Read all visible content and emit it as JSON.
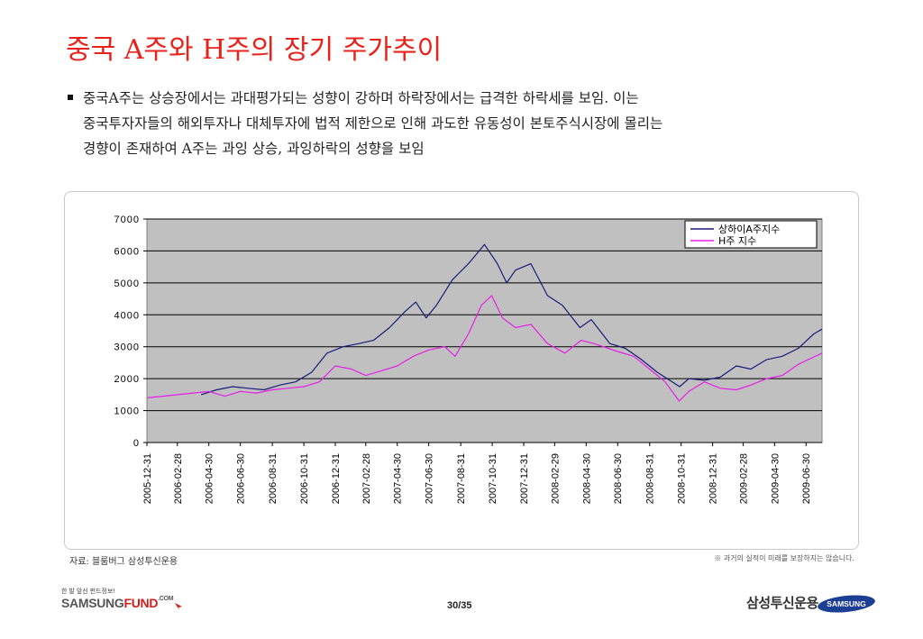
{
  "page": {
    "title": "중국 A주와 H주의 장기 주가추이",
    "bullet_lines": [
      "중국A주는 상승장에서는 과대평가되는 성향이 강하며 하락장에서는 급격한 하락세를 보임. 이는",
      "중국투자자들의 해외투자나 대체투자에 법적 제한으로 인해 과도한 유동성이 본토주식시장에 몰리는",
      "경향이 존재하여 A주는 과잉 상승, 과잉하락의 성향을 보임"
    ],
    "source": "자료: 블룸버그 삼성투신운용",
    "disclaimer": "※ 과거의 실적이 미래를 보장하지는 않습니다.",
    "footer": {
      "slogan": "한 발 앞선 펀드정보!",
      "brand_main": "SAMSUNG",
      "brand_fund": "FUND",
      "brand_com": ".COM",
      "page_number": "30/35",
      "company_name": "삼성투신운용",
      "logo_text": "SAMSUNG"
    }
  },
  "colors": {
    "title": "#e8221b",
    "plot_bg": "#c0c0c0",
    "series_a": "#1a1a7a",
    "series_h": "#e61ee6",
    "gridline": "#000000"
  },
  "chart_data": {
    "type": "line",
    "ylim": [
      0,
      7000
    ],
    "yticks": [
      "0",
      "1000",
      "2000",
      "3000",
      "4000",
      "5000",
      "6000",
      "7000"
    ],
    "x_tick_labels": [
      "2005-12-31",
      "2006-02-28",
      "2006-04-30",
      "2006-06-30",
      "2006-08-31",
      "2006-10-31",
      "2006-12-31",
      "2007-02-28",
      "2007-04-30",
      "2007-06-30",
      "2007-08-31",
      "2007-10-31",
      "2007-12-31",
      "2008-02-29",
      "2008-04-30",
      "2008-06-30",
      "2008-08-31",
      "2008-10-31",
      "2008-12-31",
      "2009-02-28",
      "2009-04-30",
      "2009-06-30"
    ],
    "grid": true,
    "legend_position": "top-right",
    "series": [
      {
        "name": "상하이A주지수",
        "x": [
          "2006-04-15",
          "2006-05-15",
          "2006-06-15",
          "2006-07-15",
          "2006-08-15",
          "2006-09-15",
          "2006-10-15",
          "2006-11-15",
          "2006-12-15",
          "2007-01-15",
          "2007-02-15",
          "2007-03-15",
          "2007-04-15",
          "2007-05-15",
          "2007-06-05",
          "2007-06-25",
          "2007-07-15",
          "2007-08-15",
          "2007-09-15",
          "2007-10-16",
          "2007-11-10",
          "2007-11-28",
          "2007-12-15",
          "2008-01-14",
          "2008-02-15",
          "2008-03-15",
          "2008-04-18",
          "2008-05-10",
          "2008-06-15",
          "2008-07-15",
          "2008-08-15",
          "2008-09-15",
          "2008-10-28",
          "2008-11-15",
          "2008-12-15",
          "2009-01-15",
          "2009-02-15",
          "2009-03-15",
          "2009-04-15",
          "2009-05-15",
          "2009-06-15",
          "2009-07-15",
          "2009-07-31"
        ],
        "values": [
          1500,
          1650,
          1750,
          1700,
          1650,
          1800,
          1900,
          2200,
          2800,
          3000,
          3100,
          3200,
          3600,
          4100,
          4400,
          3900,
          4300,
          5100,
          5600,
          6200,
          5600,
          5000,
          5400,
          5600,
          4600,
          4300,
          3600,
          3850,
          3100,
          2950,
          2600,
          2200,
          1750,
          2000,
          1950,
          2050,
          2400,
          2300,
          2600,
          2700,
          2950,
          3400,
          3550
        ]
      },
      {
        "name": "H주 지수",
        "x": [
          "2006-01-01",
          "2006-01-31",
          "2006-02-28",
          "2006-03-31",
          "2006-04-30",
          "2006-05-31",
          "2006-06-30",
          "2006-07-31",
          "2006-08-31",
          "2006-09-30",
          "2006-10-31",
          "2006-11-30",
          "2006-12-31",
          "2007-01-31",
          "2007-02-28",
          "2007-03-31",
          "2007-04-30",
          "2007-05-31",
          "2007-06-30",
          "2007-07-31",
          "2007-08-20",
          "2007-09-15",
          "2007-10-10",
          "2007-10-30",
          "2007-11-20",
          "2007-12-15",
          "2008-01-14",
          "2008-02-15",
          "2008-03-20",
          "2008-04-20",
          "2008-05-15",
          "2008-06-30",
          "2008-07-31",
          "2008-08-31",
          "2008-09-30",
          "2008-10-27",
          "2008-11-15",
          "2008-12-15",
          "2009-01-15",
          "2009-02-15",
          "2009-03-15",
          "2009-04-15",
          "2009-05-15",
          "2009-06-15",
          "2009-07-31"
        ],
        "values": [
          1400,
          1450,
          1500,
          1550,
          1600,
          1450,
          1600,
          1550,
          1650,
          1700,
          1750,
          1900,
          2400,
          2300,
          2100,
          2250,
          2400,
          2700,
          2900,
          3000,
          2700,
          3400,
          4300,
          4600,
          3900,
          3600,
          3700,
          3100,
          2800,
          3200,
          3100,
          2850,
          2700,
          2300,
          1900,
          1300,
          1600,
          1900,
          1700,
          1650,
          1800,
          2000,
          2100,
          2450,
          2800
        ]
      }
    ]
  }
}
